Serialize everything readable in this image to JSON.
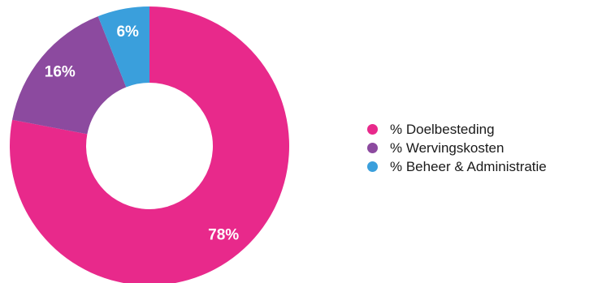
{
  "chart_data": {
    "type": "pie",
    "donut": true,
    "title": "",
    "legend_position": "right",
    "categories": [
      "% Doelbesteding",
      "% Wervingskosten",
      "% Beheer & Administratie"
    ],
    "values": [
      78,
      16,
      6
    ],
    "value_labels": [
      "78%",
      "16%",
      "6%"
    ],
    "colors": [
      "#e8298b",
      "#8c4a9f",
      "#3a9fdc"
    ]
  }
}
